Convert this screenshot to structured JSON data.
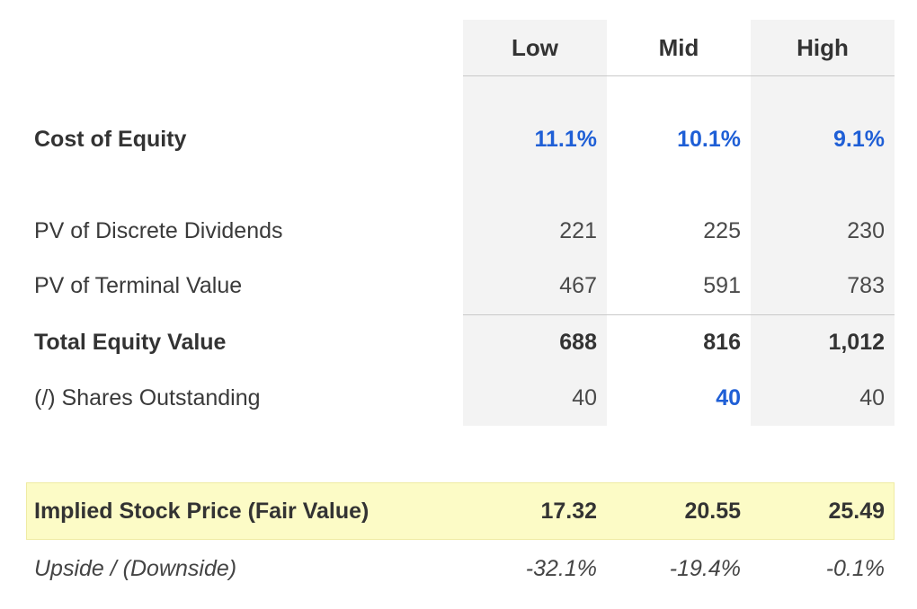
{
  "columns": [
    "Low",
    "Mid",
    "High"
  ],
  "rows": {
    "cost_of_equity": {
      "label": "Cost of Equity",
      "values": [
        "11.1%",
        "10.1%",
        "9.1%"
      ]
    },
    "pv_dividends": {
      "label": "PV of Discrete Dividends",
      "values": [
        "221",
        "225",
        "230"
      ]
    },
    "pv_terminal": {
      "label": "PV of Terminal Value",
      "values": [
        "467",
        "591",
        "783"
      ]
    },
    "total_equity": {
      "label": "Total Equity Value",
      "values": [
        "688",
        "816",
        "1,012"
      ]
    },
    "shares": {
      "label": "(/) Shares Outstanding",
      "values": [
        "40",
        "40",
        "40"
      ]
    },
    "implied_price": {
      "label": "Implied Stock Price (Fair Value)",
      "values": [
        "17.32",
        "20.55",
        "25.49"
      ]
    },
    "upside": {
      "label": "Upside / (Downside)",
      "values": [
        "-32.1%",
        "-19.4%",
        "-0.1%"
      ]
    }
  },
  "colors": {
    "accent_blue": "#1f5fd6",
    "highlight": "#fcfbc6",
    "column_shade": "#f3f3f3"
  }
}
